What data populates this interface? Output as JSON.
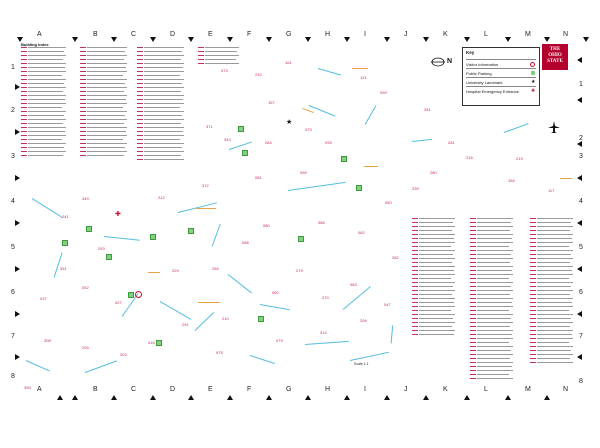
{
  "grid": {
    "letters": [
      "A",
      "B",
      "C",
      "D",
      "E",
      "F",
      "G",
      "H",
      "I",
      "J",
      "K",
      "L",
      "M",
      "N"
    ],
    "numbers": [
      "1",
      "2",
      "3",
      "4",
      "5",
      "6",
      "7",
      "8"
    ]
  },
  "index": {
    "title": "Building Index"
  },
  "key": {
    "title": "Key",
    "items": [
      {
        "label": "Visitor Information",
        "symbol": "red-ring"
      },
      {
        "label": "Public Parking",
        "symbol": "green-square"
      },
      {
        "label": "University Landmark",
        "symbol": "star"
      },
      {
        "label": "Hospital Emergency Entrance",
        "symbol": "red-cross"
      }
    ]
  },
  "logo": {
    "line1": "THE",
    "line2": "OHIO",
    "line3": "STATE"
  },
  "compass": {
    "letter": "N"
  },
  "colors": {
    "building_number": "#c8285f",
    "street": "#55bde0",
    "landmark_label": "#e0902a",
    "parking": "#7fd07f",
    "visitor_info": "#c8102e"
  },
  "scale": "Scale 1:1"
}
